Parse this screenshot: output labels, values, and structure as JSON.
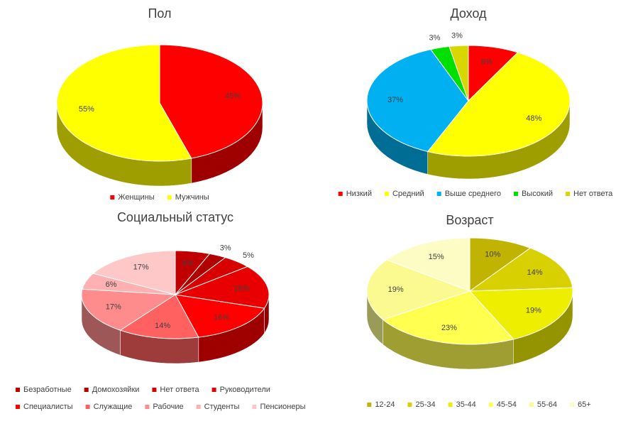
{
  "chart_data": [
    {
      "type": "pie",
      "title": "Пол",
      "categories": [
        "Женщины",
        "Мужчины"
      ],
      "values": [
        45,
        55
      ],
      "value_labels": [
        "45%",
        "55%"
      ],
      "colors": [
        "#ff0000",
        "#ffff00"
      ],
      "legend": "bottom"
    },
    {
      "type": "pie",
      "title": "Доход",
      "categories": [
        "Низкий",
        "Средний",
        "Выше среднего",
        "Высокий",
        "Нет ответа"
      ],
      "values": [
        8,
        48,
        37,
        3,
        3
      ],
      "value_labels": [
        "8%",
        "48%",
        "37%",
        "3%",
        "3%"
      ],
      "colors": [
        "#ff0000",
        "#ffff00",
        "#00b0f0",
        "#00e000",
        "#d8d800"
      ],
      "legend": "bottom"
    },
    {
      "type": "pie",
      "title": "Социальный статус",
      "categories": [
        "Безработные",
        "Домохозяйки",
        "Нет ответа",
        "Руководители",
        "Специалисты",
        "Служащие",
        "Рабочие",
        "Студенты",
        "Пенсионеры"
      ],
      "values": [
        6,
        3,
        5,
        16,
        16,
        14,
        17,
        6,
        17
      ],
      "value_labels": [
        "6%",
        "3%",
        "5%",
        "16%",
        "16%",
        "14%",
        "17%",
        "6%",
        "17%"
      ],
      "colors": [
        "#c00000",
        "#b00000",
        "#d80000",
        "#e80000",
        "#ff0000",
        "#ff6060",
        "#ff8c8c",
        "#ffb0b0",
        "#ffc8c8"
      ],
      "legend": "bottom"
    },
    {
      "type": "pie",
      "title": "Возраст",
      "categories": [
        "12-24",
        "25-34",
        "35-44",
        "45-54",
        "55-64",
        "65+"
      ],
      "values": [
        10,
        14,
        19,
        23,
        19,
        15
      ],
      "value_labels": [
        "10%",
        "14%",
        "19%",
        "23%",
        "19%",
        "15%"
      ],
      "colors": [
        "#c0b400",
        "#d8d000",
        "#eeee00",
        "#ffff50",
        "#fafa90",
        "#fcfcc4"
      ],
      "legend": "bottom"
    }
  ]
}
